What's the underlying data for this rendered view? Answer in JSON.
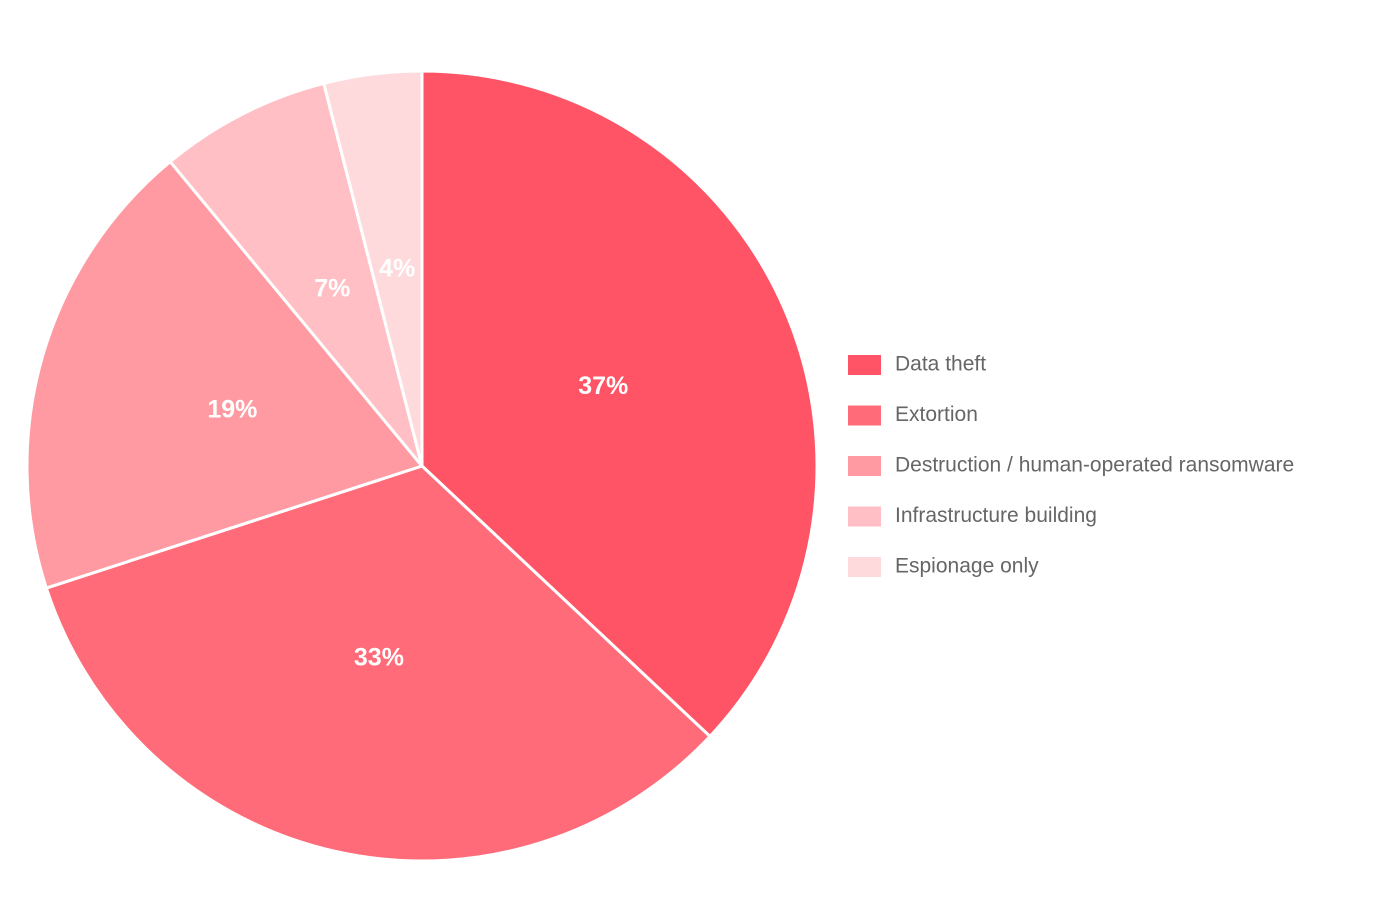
{
  "chart_data": {
    "type": "pie",
    "categories": [
      "Data theft",
      "Extortion",
      "Destruction / human-operated ransomware",
      "Infrastructure building",
      "Espionage only"
    ],
    "values": [
      37,
      33,
      19,
      7,
      4
    ],
    "value_labels": [
      "37%",
      "33%",
      "19%",
      "7%",
      "4%"
    ],
    "colors": [
      "#ff5465",
      "#ff6b79",
      "#ff9aa2",
      "#ffbfc5",
      "#ffdadd"
    ],
    "legend": "right"
  }
}
